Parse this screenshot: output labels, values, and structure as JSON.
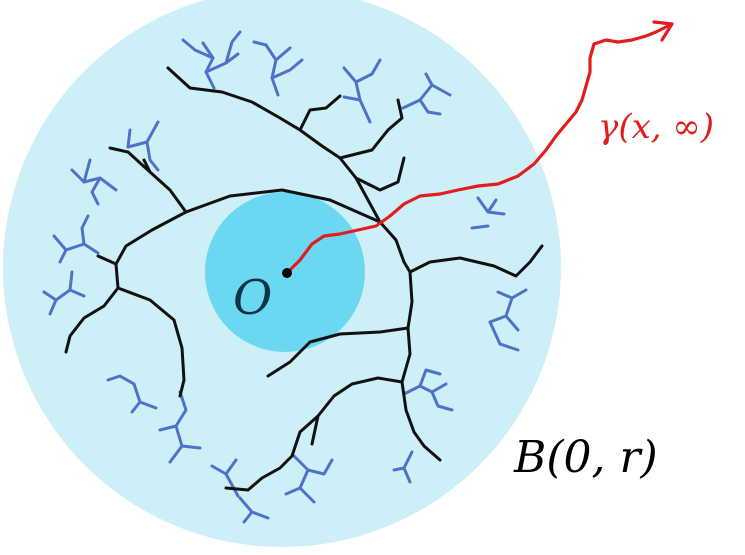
{
  "labels": {
    "origin": "O",
    "path": "γ(x, ∞)",
    "ball": "B(0, r)"
  },
  "colors": {
    "outer_ball": "#cdeff7",
    "inner_ball": "#6ad8f0",
    "backbone": "#111111",
    "branches": "#4d72c8",
    "path": "#e11d1d",
    "origin_point": "#000000"
  },
  "icons": {
    "arrowhead": "path-arrowhead-icon",
    "origin_marker": "origin-point-icon"
  }
}
